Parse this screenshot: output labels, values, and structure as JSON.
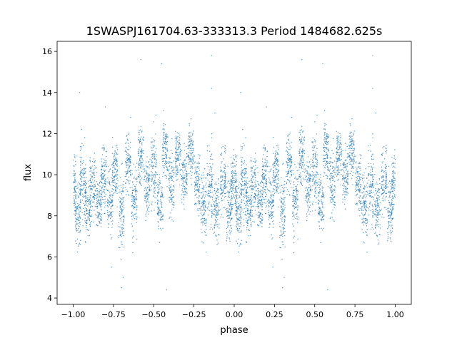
{
  "chart_data": {
    "type": "scatter",
    "title": "1SWASPJ161704.63-333313.3 Period 1484682.625s",
    "xlabel": "phase",
    "ylabel": "flux",
    "xlim": [
      -1.1,
      1.1
    ],
    "ylim": [
      3.69,
      16.49
    ],
    "xticks": [
      -1.0,
      -0.75,
      -0.5,
      -0.25,
      0.0,
      0.25,
      0.5,
      0.75,
      1.0
    ],
    "xtick_labels": [
      "−1.00",
      "−0.75",
      "−0.50",
      "−0.25",
      "0.00",
      "0.25",
      "0.50",
      "0.75",
      "1.00"
    ],
    "yticks": [
      4,
      6,
      8,
      10,
      12,
      14,
      16
    ],
    "ytick_labels": [
      "4",
      "6",
      "8",
      "10",
      "12",
      "14",
      "16"
    ],
    "grid": false,
    "point_color": "#1f77b4",
    "note_series": "phase-folded: points for phase 0..1 repeated at phase-1",
    "clusters": [
      {
        "phase": 0.0,
        "flux": 9.4,
        "spread": 1.0
      },
      {
        "phase": 0.03,
        "flux": 8.2,
        "spread": 1.0
      },
      {
        "phase": 0.06,
        "flux": 9.6,
        "spread": 1.2
      },
      {
        "phase": 0.09,
        "flux": 8.4,
        "spread": 0.9
      },
      {
        "phase": 0.12,
        "flux": 9.3,
        "spread": 1.1
      },
      {
        "phase": 0.16,
        "flux": 8.6,
        "spread": 0.9
      },
      {
        "phase": 0.19,
        "flux": 9.8,
        "spread": 1.0
      },
      {
        "phase": 0.23,
        "flux": 8.8,
        "spread": 1.0
      },
      {
        "phase": 0.26,
        "flux": 10.3,
        "spread": 1.0
      },
      {
        "phase": 0.3,
        "flux": 8.2,
        "spread": 1.2
      },
      {
        "phase": 0.34,
        "flux": 10.6,
        "spread": 1.0
      },
      {
        "phase": 0.38,
        "flux": 8.8,
        "spread": 1.1
      },
      {
        "phase": 0.42,
        "flux": 11.0,
        "spread": 0.9
      },
      {
        "phase": 0.46,
        "flux": 9.4,
        "spread": 1.0
      },
      {
        "phase": 0.5,
        "flux": 10.2,
        "spread": 1.2
      },
      {
        "phase": 0.54,
        "flux": 8.6,
        "spread": 0.8
      },
      {
        "phase": 0.57,
        "flux": 11.2,
        "spread": 0.9
      },
      {
        "phase": 0.61,
        "flux": 9.5,
        "spread": 1.1
      },
      {
        "phase": 0.65,
        "flux": 11.0,
        "spread": 0.8
      },
      {
        "phase": 0.69,
        "flux": 9.9,
        "spread": 0.9
      },
      {
        "phase": 0.73,
        "flux": 11.2,
        "spread": 0.8
      },
      {
        "phase": 0.77,
        "flux": 9.6,
        "spread": 0.9
      },
      {
        "phase": 0.81,
        "flux": 8.5,
        "spread": 1.0
      },
      {
        "phase": 0.85,
        "flux": 9.4,
        "spread": 1.2
      },
      {
        "phase": 0.89,
        "flux": 8.3,
        "spread": 0.9
      },
      {
        "phase": 0.93,
        "flux": 9.8,
        "spread": 1.1
      },
      {
        "phase": 0.97,
        "flux": 8.4,
        "spread": 1.0
      },
      {
        "phase": 0.995,
        "flux": 9.6,
        "spread": 1.0
      }
    ],
    "outliers": [
      {
        "phase": 0.3,
        "flux": 4.5
      },
      {
        "phase": 0.31,
        "flux": 5.0
      },
      {
        "phase": 0.24,
        "flux": 5.5
      },
      {
        "phase": 0.37,
        "flux": 6.2
      },
      {
        "phase": 0.58,
        "flux": 4.4
      },
      {
        "phase": 0.86,
        "flux": 15.8
      },
      {
        "phase": 0.86,
        "flux": 14.2
      },
      {
        "phase": 0.42,
        "flux": 15.6
      },
      {
        "phase": 0.55,
        "flux": 15.4
      },
      {
        "phase": 0.04,
        "flux": 14.0
      },
      {
        "phase": 0.88,
        "flux": 13.0
      },
      {
        "phase": 0.2,
        "flux": 13.3
      }
    ]
  }
}
